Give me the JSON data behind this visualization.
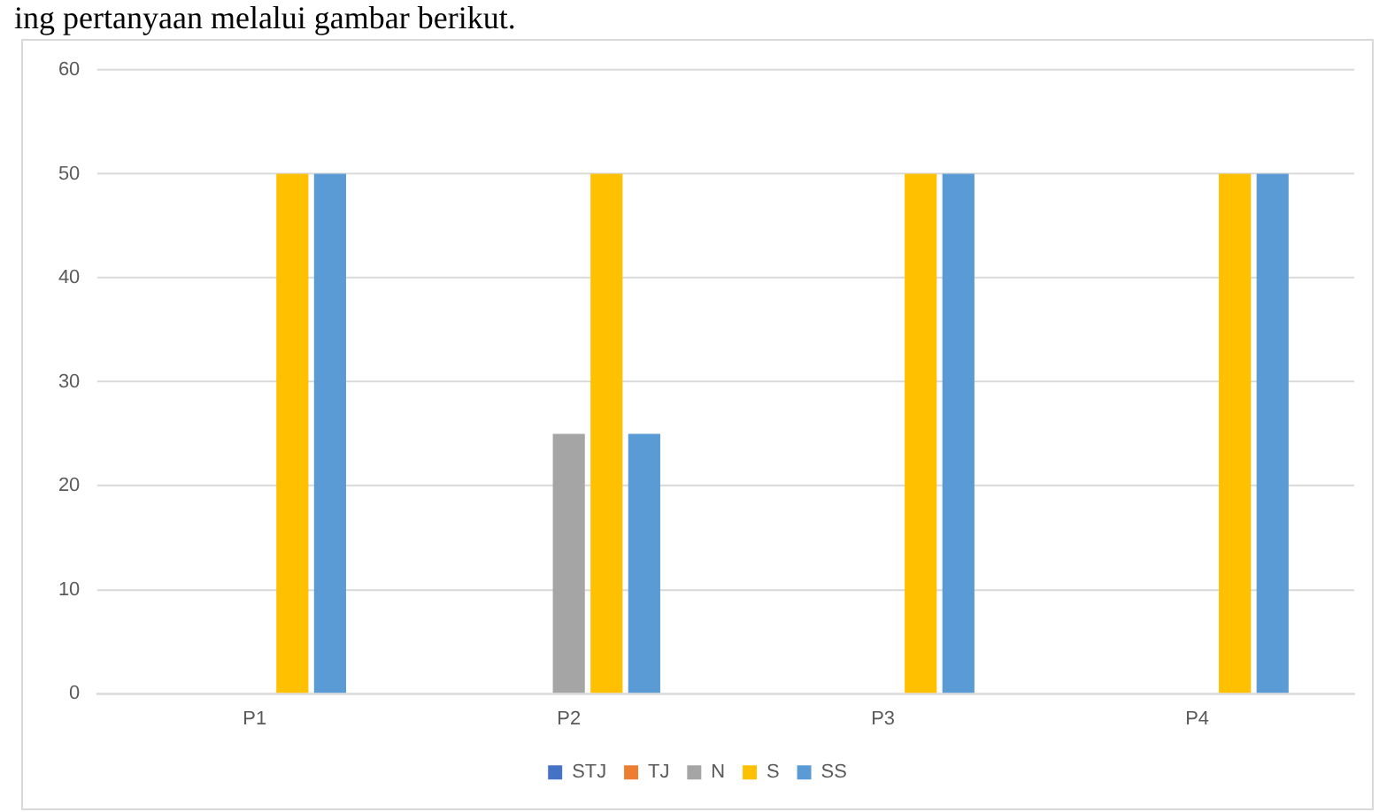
{
  "chart_data": {
    "type": "bar",
    "annotations": [
      "ing pertanyaan melalui gambar berikut."
    ],
    "categories": [
      "P1",
      "P2",
      "P3",
      "P4"
    ],
    "series": [
      {
        "name": "STJ",
        "color": "#4472c4",
        "values": [
          0,
          0,
          0,
          0
        ]
      },
      {
        "name": "TJ",
        "color": "#ed7d31",
        "values": [
          0,
          0,
          0,
          0
        ]
      },
      {
        "name": "N",
        "color": "#a5a5a5",
        "values": [
          0,
          25,
          0,
          0
        ]
      },
      {
        "name": "S",
        "color": "#ffc000",
        "values": [
          50,
          50,
          50,
          50
        ]
      },
      {
        "name": "SS",
        "color": "#5b9bd5",
        "values": [
          50,
          25,
          50,
          50
        ]
      }
    ],
    "ylim": [
      0,
      60
    ],
    "yticks": [
      0,
      10,
      20,
      30,
      40,
      50,
      60
    ],
    "grid": "y",
    "legend": "bottom"
  }
}
